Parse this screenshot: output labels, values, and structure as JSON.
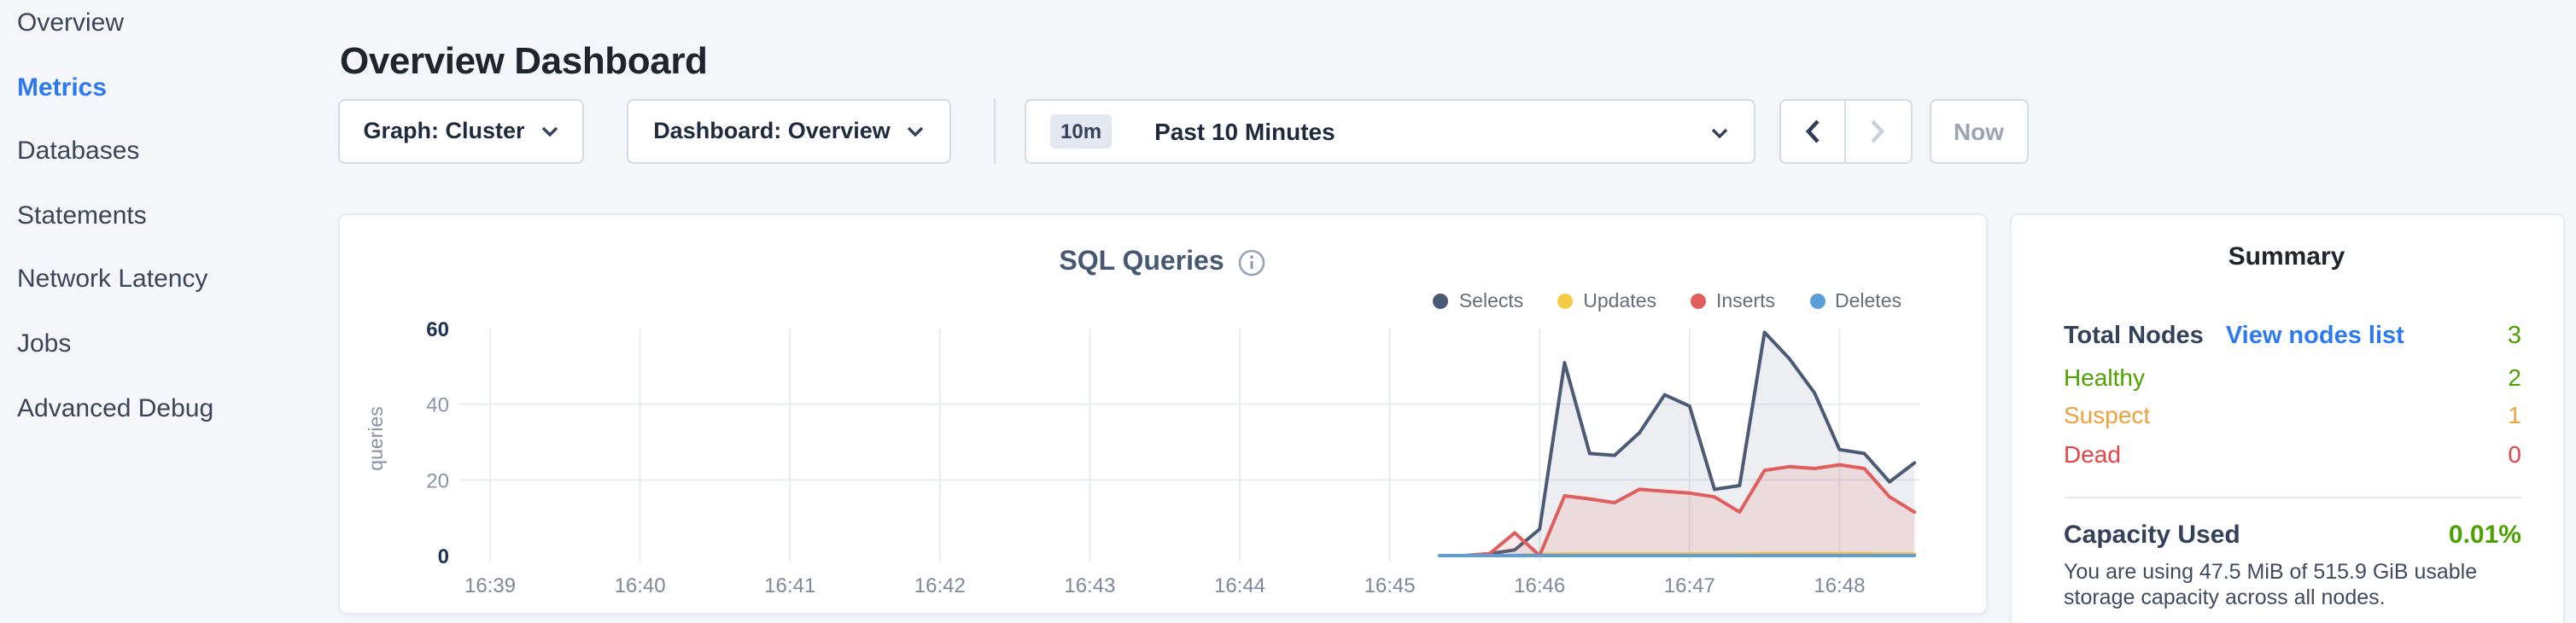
{
  "theme": {
    "accent_blue": "#2d7af0",
    "green": "#4da100",
    "orange": "#f0a13b",
    "red": "#e54545",
    "page_bg": "#f5f6fa"
  },
  "icons": {
    "dropdown": "chevron-down-icon",
    "prev": "chevron-left-icon",
    "next": "chevron-right-icon",
    "chart_info": "info-circle-icon"
  },
  "sidebar": {
    "active": "Metrics",
    "items": [
      {
        "label": "Overview"
      },
      {
        "label": "Metrics"
      },
      {
        "label": "Databases"
      },
      {
        "label": "Statements"
      },
      {
        "label": "Network Latency"
      },
      {
        "label": "Jobs"
      },
      {
        "label": "Advanced Debug"
      }
    ]
  },
  "header": {
    "title": "Overview Dashboard"
  },
  "controls": {
    "graph_dropdown": {
      "label": "Graph: Cluster"
    },
    "dashboard_dropdown": {
      "label": "Dashboard: Overview"
    },
    "time_picker": {
      "badge": "10m",
      "value": "Past 10 Minutes"
    },
    "now_label": "Now"
  },
  "chart_data": {
    "type": "area",
    "title": "SQL Queries",
    "ylabel": "queries",
    "grid": true,
    "legend_position": "top-right",
    "x_labels": [
      "16:39",
      "16:40",
      "16:41",
      "16:42",
      "16:43",
      "16:44",
      "16:45",
      "16:46",
      "16:47",
      "16:48"
    ],
    "y_ticks": [
      0,
      20,
      40,
      60
    ],
    "ylim": [
      0,
      60
    ],
    "x_minutes": [
      6.3333,
      6.5,
      6.6667,
      6.8333,
      7,
      7.1667,
      7.3333,
      7.5,
      7.6667,
      7.8333,
      8,
      8.1667,
      8.3333,
      8.5,
      8.6667,
      8.8333,
      9,
      9.1667,
      9.3333,
      9.5
    ],
    "series": [
      {
        "name": "Selects",
        "color": "#4c5b75",
        "fill": "rgba(76,91,117,0.10)",
        "values": [
          0,
          0,
          0.5,
          1.5,
          7,
          51,
          27,
          26.5,
          32.5,
          42.5,
          39.5,
          17.5,
          18.5,
          59,
          52,
          43,
          28,
          27,
          19.5,
          24.5
        ]
      },
      {
        "name": "Updates",
        "color": "#f6cb45",
        "fill": "rgba(246,203,69,0.15)",
        "values": [
          0,
          0,
          0,
          0,
          0.3,
          0.4,
          0.4,
          0.4,
          0.4,
          0.4,
          0.4,
          0.4,
          0.4,
          0.5,
          0.5,
          0.5,
          0.5,
          0.5,
          0.4,
          0.4
        ]
      },
      {
        "name": "Inserts",
        "color": "#e05e5e",
        "fill": "rgba(224,94,94,0.13)",
        "values": [
          0,
          0,
          0.5,
          6,
          0,
          15.8,
          15,
          14,
          17.5,
          17,
          16.5,
          15.5,
          11.5,
          22.5,
          23.5,
          23,
          24,
          23,
          15.5,
          11.5
        ]
      },
      {
        "name": "Deletes",
        "color": "#5b9fd6",
        "fill": "rgba(91,159,214,0.15)",
        "values": [
          0,
          0,
          0,
          0,
          0,
          0,
          0,
          0,
          0,
          0,
          0,
          0,
          0,
          0,
          0,
          0,
          0,
          0,
          0,
          0
        ]
      }
    ]
  },
  "summary": {
    "title": "Summary",
    "total": {
      "label": "Total Nodes",
      "link": "View nodes list",
      "value": "3",
      "value_color": "#4da100"
    },
    "rows": [
      {
        "label": "Healthy",
        "value": "2",
        "color": "#4da100"
      },
      {
        "label": "Suspect",
        "value": "1",
        "color": "#f0a13b"
      },
      {
        "label": "Dead",
        "value": "0",
        "color": "#e54545"
      }
    ],
    "capacity": {
      "label": "Capacity Used",
      "value": "0.01%",
      "description": "You are using 47.5 MiB of 515.9 GiB usable storage capacity across all nodes."
    }
  }
}
